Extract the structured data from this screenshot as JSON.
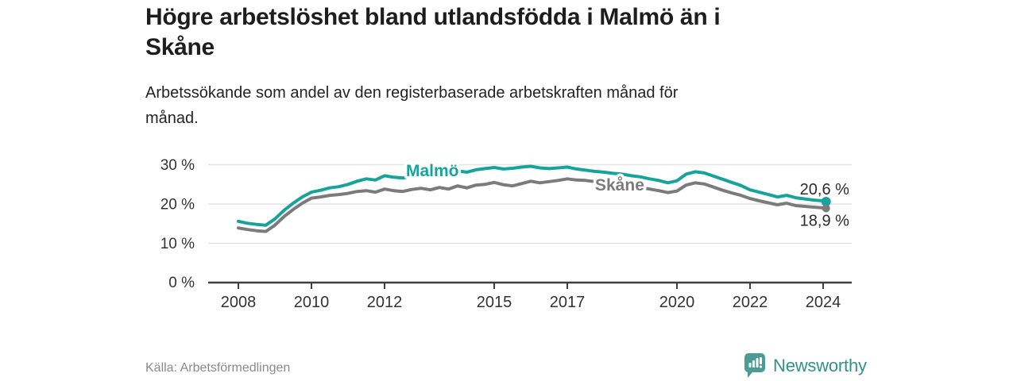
{
  "header": {
    "title_lines": [
      "Högre arbetslöshet bland utlandsfödda i Malmö än i",
      "Skåne"
    ],
    "subtitle_lines": [
      "Arbetssökande som andel av den registerbaserade arbetskraften månad för",
      "månad."
    ]
  },
  "colors": {
    "malmo_line": "#18a39a",
    "skane_line": "#7b7b7b",
    "gridline": "#e3e3e3",
    "axis": "#3f3f3f",
    "tick_label": "#333333",
    "end_label": "#2b2b2b",
    "brand_badge": "#4c9c96",
    "brand_text": "#31918b"
  },
  "chart_data": {
    "type": "line",
    "title": "Högre arbetslöshet bland utlandsfödda i Malmö än i Skåne",
    "subtitle": "Arbetssökande som andel av den registerbaserade arbetskraften månad för månad.",
    "unit": "%",
    "grid": "horizontal",
    "legend_position": "inline-labels",
    "x_axis": {
      "ticks": [
        2008,
        2010,
        2012,
        2015,
        2017,
        2020,
        2022,
        2024
      ],
      "range": [
        2007.2,
        2024.8
      ]
    },
    "y_axis": {
      "ticks_pct": [
        0,
        10,
        20,
        30
      ],
      "tick_labels": [
        "0 %",
        "10 %",
        "20 %",
        "30 %"
      ],
      "range": [
        0,
        32
      ]
    },
    "series": [
      {
        "name": "Malmö",
        "color": "#18a39a",
        "end_label": "20,6 %",
        "end_value": 20.6,
        "points": [
          [
            2008.0,
            15.6
          ],
          [
            2008.25,
            15.1
          ],
          [
            2008.5,
            14.8
          ],
          [
            2008.75,
            14.6
          ],
          [
            2009.0,
            16.2
          ],
          [
            2009.25,
            18.4
          ],
          [
            2009.5,
            20.2
          ],
          [
            2009.75,
            21.8
          ],
          [
            2010.0,
            23.0
          ],
          [
            2010.25,
            23.5
          ],
          [
            2010.5,
            24.1
          ],
          [
            2010.75,
            24.4
          ],
          [
            2011.0,
            25.0
          ],
          [
            2011.25,
            25.8
          ],
          [
            2011.5,
            26.4
          ],
          [
            2011.75,
            26.1
          ],
          [
            2012.0,
            27.2
          ],
          [
            2012.25,
            26.8
          ],
          [
            2012.5,
            26.6
          ],
          [
            2012.75,
            27.0
          ],
          [
            2013.0,
            27.3
          ],
          [
            2013.25,
            27.1
          ],
          [
            2013.5,
            27.6
          ],
          [
            2013.75,
            27.9
          ],
          [
            2014.0,
            28.4
          ],
          [
            2014.25,
            28.1
          ],
          [
            2014.5,
            28.7
          ],
          [
            2014.75,
            29.0
          ],
          [
            2015.0,
            29.3
          ],
          [
            2015.25,
            28.9
          ],
          [
            2015.5,
            29.1
          ],
          [
            2015.75,
            29.4
          ],
          [
            2016.0,
            29.6
          ],
          [
            2016.25,
            29.2
          ],
          [
            2016.5,
            29.0
          ],
          [
            2016.75,
            29.2
          ],
          [
            2017.0,
            29.4
          ],
          [
            2017.25,
            28.9
          ],
          [
            2017.5,
            28.6
          ],
          [
            2017.75,
            28.3
          ],
          [
            2018.0,
            28.1
          ],
          [
            2018.25,
            27.8
          ],
          [
            2018.5,
            27.6
          ],
          [
            2018.75,
            27.2
          ],
          [
            2019.0,
            26.9
          ],
          [
            2019.25,
            26.4
          ],
          [
            2019.5,
            26.0
          ],
          [
            2019.75,
            25.4
          ],
          [
            2020.0,
            25.9
          ],
          [
            2020.25,
            27.6
          ],
          [
            2020.5,
            28.2
          ],
          [
            2020.75,
            27.9
          ],
          [
            2021.0,
            27.1
          ],
          [
            2021.25,
            26.3
          ],
          [
            2021.5,
            25.5
          ],
          [
            2021.75,
            24.7
          ],
          [
            2022.0,
            23.6
          ],
          [
            2022.25,
            23.0
          ],
          [
            2022.5,
            22.4
          ],
          [
            2022.75,
            21.8
          ],
          [
            2023.0,
            22.2
          ],
          [
            2023.25,
            21.6
          ],
          [
            2023.5,
            21.3
          ],
          [
            2023.75,
            21.0
          ],
          [
            2024.0,
            20.8
          ],
          [
            2024.08,
            20.6
          ]
        ]
      },
      {
        "name": "Skåne",
        "color": "#7b7b7b",
        "end_label": "18,9 %",
        "end_value": 18.9,
        "points": [
          [
            2008.0,
            13.9
          ],
          [
            2008.25,
            13.5
          ],
          [
            2008.5,
            13.2
          ],
          [
            2008.75,
            13.0
          ],
          [
            2009.0,
            14.6
          ],
          [
            2009.25,
            16.8
          ],
          [
            2009.5,
            18.6
          ],
          [
            2009.75,
            20.2
          ],
          [
            2010.0,
            21.5
          ],
          [
            2010.25,
            21.8
          ],
          [
            2010.5,
            22.2
          ],
          [
            2010.75,
            22.4
          ],
          [
            2011.0,
            22.7
          ],
          [
            2011.25,
            23.2
          ],
          [
            2011.5,
            23.4
          ],
          [
            2011.75,
            23.0
          ],
          [
            2012.0,
            23.8
          ],
          [
            2012.25,
            23.4
          ],
          [
            2012.5,
            23.2
          ],
          [
            2012.75,
            23.7
          ],
          [
            2013.0,
            24.0
          ],
          [
            2013.25,
            23.6
          ],
          [
            2013.5,
            24.2
          ],
          [
            2013.75,
            23.8
          ],
          [
            2014.0,
            24.6
          ],
          [
            2014.25,
            24.1
          ],
          [
            2014.5,
            24.8
          ],
          [
            2014.75,
            25.0
          ],
          [
            2015.0,
            25.5
          ],
          [
            2015.25,
            24.9
          ],
          [
            2015.5,
            24.6
          ],
          [
            2015.75,
            25.2
          ],
          [
            2016.0,
            25.8
          ],
          [
            2016.25,
            25.4
          ],
          [
            2016.5,
            25.7
          ],
          [
            2016.75,
            26.0
          ],
          [
            2017.0,
            26.4
          ],
          [
            2017.25,
            26.1
          ],
          [
            2017.5,
            26.0
          ],
          [
            2017.75,
            25.7
          ],
          [
            2018.0,
            25.5
          ],
          [
            2018.25,
            25.2
          ],
          [
            2018.5,
            25.0
          ],
          [
            2018.75,
            24.6
          ],
          [
            2019.0,
            24.2
          ],
          [
            2019.25,
            23.8
          ],
          [
            2019.5,
            23.4
          ],
          [
            2019.75,
            22.9
          ],
          [
            2020.0,
            23.3
          ],
          [
            2020.25,
            24.8
          ],
          [
            2020.5,
            25.4
          ],
          [
            2020.75,
            25.1
          ],
          [
            2021.0,
            24.3
          ],
          [
            2021.25,
            23.5
          ],
          [
            2021.5,
            22.8
          ],
          [
            2021.75,
            22.2
          ],
          [
            2022.0,
            21.4
          ],
          [
            2022.25,
            20.8
          ],
          [
            2022.5,
            20.3
          ],
          [
            2022.75,
            19.8
          ],
          [
            2023.0,
            20.2
          ],
          [
            2023.25,
            19.6
          ],
          [
            2023.5,
            19.4
          ],
          [
            2023.75,
            19.2
          ],
          [
            2024.0,
            19.0
          ],
          [
            2024.08,
            18.9
          ]
        ]
      }
    ]
  },
  "footer": {
    "source": "Källa: Arbetsförmedlingen",
    "brand": "Newsworthy"
  }
}
